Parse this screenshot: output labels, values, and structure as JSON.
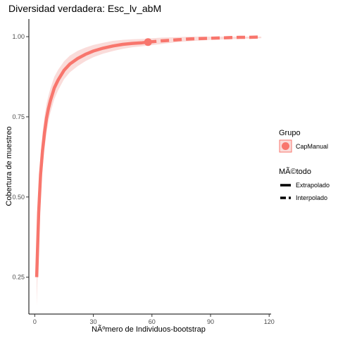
{
  "chart_data": {
    "type": "line",
    "title": "Diversidad verdadera: Esc_lv_abM",
    "xlabel": "NÃºmero de Individuos-bootstrap",
    "ylabel": "Cobertura de muestreo",
    "xlim": [
      -3,
      121
    ],
    "ylim": [
      0.135,
      1.055
    ],
    "x_ticks": [
      0,
      30,
      60,
      90,
      120
    ],
    "x_tick_labels": [
      "0",
      "30",
      "60",
      "90",
      "120"
    ],
    "y_ticks": [
      0.25,
      0.5,
      0.75,
      1.0
    ],
    "y_tick_labels": [
      "0.25",
      "0.50",
      "0.75",
      "1.00"
    ],
    "grid": false,
    "legend_position": "right",
    "legend": {
      "group_title": "Grupo",
      "group_entries": [
        {
          "label": "CapManual",
          "color": "#F8766D"
        }
      ],
      "method_title": "MÃ©todo",
      "method_entries": [
        {
          "label": "Extrapolado",
          "linetype": "solid"
        },
        {
          "label": "Interpolado",
          "linetype": "dashed"
        }
      ]
    },
    "reference_sample": {
      "x": 58,
      "y": 0.983
    },
    "series": [
      {
        "name": "CapManual",
        "color": "#F8766D",
        "ribbon_color": "#FADCDA",
        "segments": [
          {
            "method": "Extrapolado",
            "x": [
              1,
              2,
              3,
              4,
              5,
              6,
              7,
              8,
              10,
              12,
              15,
              18,
              22,
              26,
              30,
              35,
              40,
              45,
              50,
              55,
              58
            ],
            "y": [
              0.25,
              0.45,
              0.57,
              0.645,
              0.7,
              0.745,
              0.775,
              0.8,
              0.84,
              0.865,
              0.895,
              0.915,
              0.932,
              0.945,
              0.955,
              0.964,
              0.971,
              0.976,
              0.979,
              0.981,
              0.983
            ],
            "lower": [
              0.16,
              0.36,
              0.5,
              0.59,
              0.65,
              0.7,
              0.735,
              0.762,
              0.805,
              0.833,
              0.867,
              0.889,
              0.908,
              0.924,
              0.936,
              0.947,
              0.955,
              0.962,
              0.967,
              0.97,
              0.972
            ],
            "upper": [
              0.34,
              0.52,
              0.63,
              0.7,
              0.75,
              0.79,
              0.815,
              0.838,
              0.875,
              0.897,
              0.923,
              0.941,
              0.956,
              0.966,
              0.974,
              0.981,
              0.987,
              0.99,
              0.992,
              0.993,
              0.994
            ]
          },
          {
            "method": "Interpolado",
            "x": [
              58,
              65,
              70,
              75,
              80,
              85,
              90,
              95,
              100,
              105,
              110,
              116
            ],
            "y": [
              0.983,
              0.987,
              0.989,
              0.991,
              0.993,
              0.994,
              0.995,
              0.996,
              0.997,
              0.998,
              0.998,
              0.999
            ],
            "lower": [
              0.972,
              0.977,
              0.981,
              0.984,
              0.986,
              0.988,
              0.99,
              0.991,
              0.992,
              0.993,
              0.994,
              0.995
            ],
            "upper": [
              0.994,
              0.997,
              0.998,
              0.999,
              1.0,
              1.0,
              1.0,
              1.0,
              1.0,
              1.0,
              1.0,
              1.0
            ]
          }
        ]
      }
    ]
  }
}
